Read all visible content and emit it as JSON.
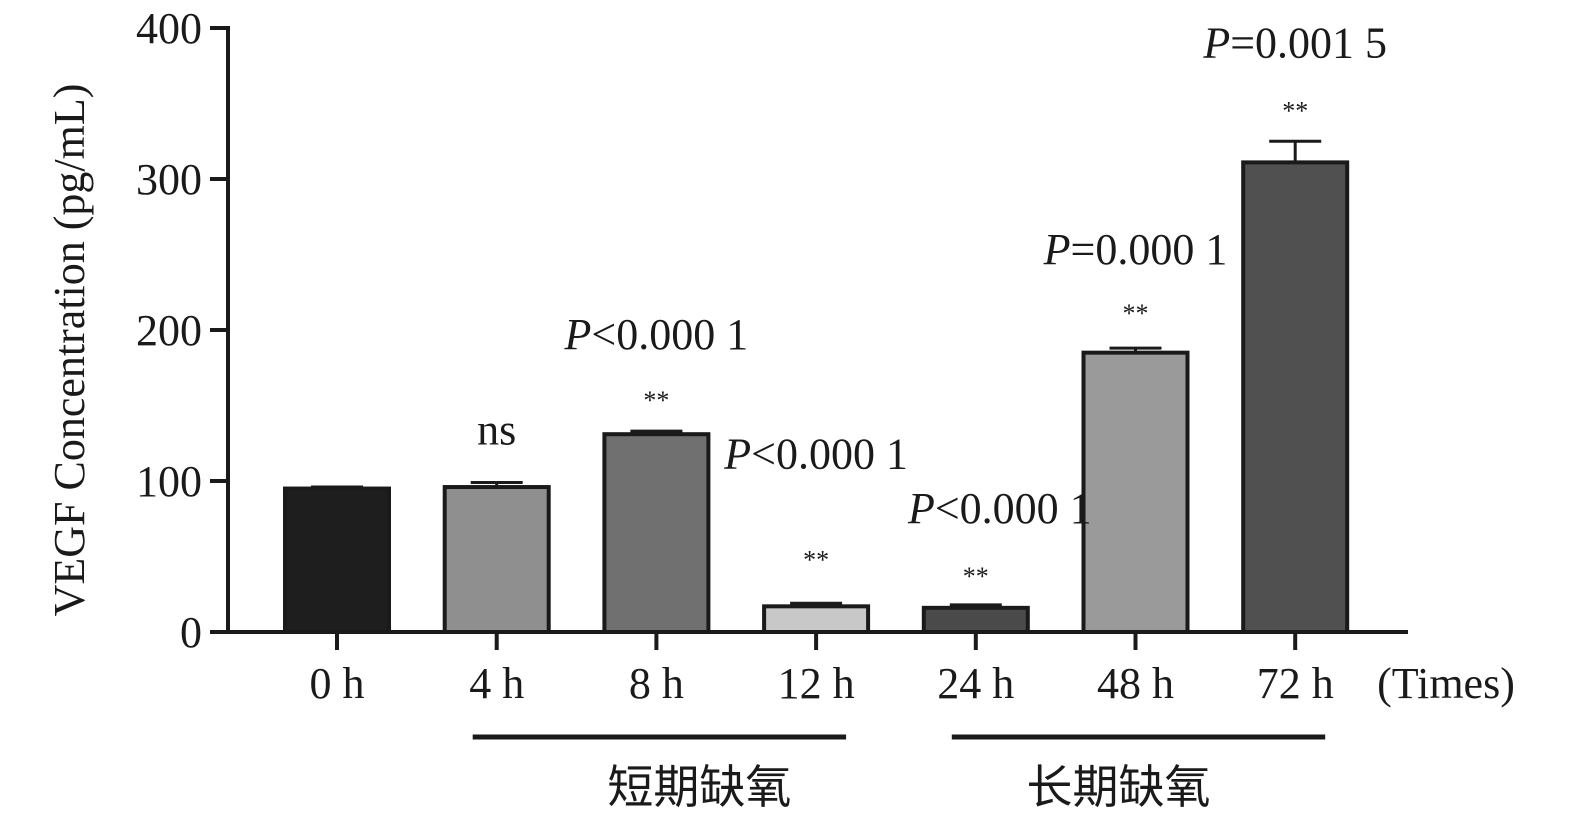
{
  "chart_data": {
    "type": "bar",
    "categories": [
      "0 h",
      "4 h",
      "8 h",
      "12 h",
      "24 h",
      "48 h",
      "72 h"
    ],
    "values": [
      95,
      96,
      131,
      17,
      16,
      185,
      311
    ],
    "errors": [
      1,
      3,
      2,
      2,
      2,
      3,
      14
    ],
    "bar_colors": [
      "#1e1e1e",
      "#8f8f8f",
      "#707070",
      "#c8c8c8",
      "#4a4a4a",
      "#9a9a9a",
      "#505050"
    ],
    "ylabel": "VEGF Concentration (pg/mL)",
    "xunit": "(Times)",
    "ylim": [
      0,
      400
    ],
    "yticks": [
      0,
      100,
      200,
      300,
      400
    ],
    "grid": false,
    "annotations": [
      {
        "category": "4 h",
        "p_prefix": "",
        "p_rest": "",
        "stars": "",
        "ns": "ns"
      },
      {
        "category": "8 h",
        "p_prefix": "P",
        "p_rest": "<0.000 1",
        "stars": "**",
        "ns": ""
      },
      {
        "category": "12 h",
        "p_prefix": "P",
        "p_rest": "<0.000 1",
        "stars": "**",
        "ns": ""
      },
      {
        "category": "24 h",
        "p_prefix": "P",
        "p_rest": "<0.000 1",
        "stars": "**",
        "ns": ""
      },
      {
        "category": "48 h",
        "p_prefix": "P",
        "p_rest": "=0.000 1",
        "stars": "**",
        "ns": ""
      },
      {
        "category": "72 h",
        "p_prefix": "P",
        "p_rest": "=0.001 5",
        "stars": "**",
        "ns": ""
      }
    ],
    "groups": [
      {
        "label": "短期缺氧",
        "from": "4 h",
        "to": "12 h"
      },
      {
        "label": "长期缺氧",
        "from": "24 h",
        "to": "72 h"
      }
    ]
  }
}
